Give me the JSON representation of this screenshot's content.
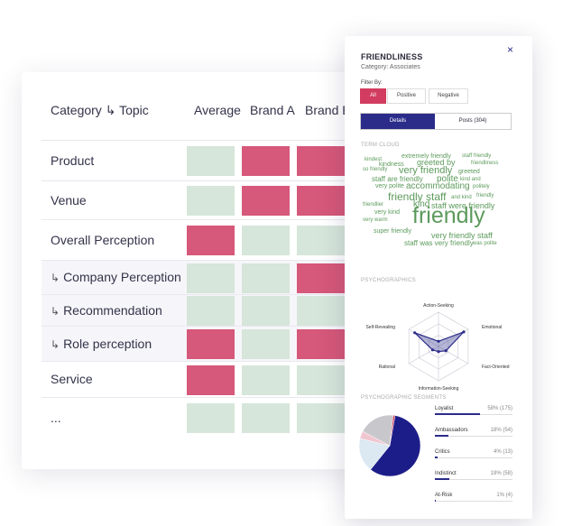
{
  "table": {
    "header_category": "Category",
    "header_arrow": "↳",
    "header_topic": "Topic",
    "columns": [
      "Average",
      "Brand A",
      "Brand B"
    ],
    "rows": [
      {
        "label": "Product",
        "sub": false,
        "cells": [
          "green",
          "red",
          "red"
        ]
      },
      {
        "label": "Venue",
        "sub": false,
        "cells": [
          "green",
          "red",
          "red"
        ]
      },
      {
        "label": "Overall Perception",
        "sub": false,
        "cells": [
          "red",
          "green",
          "green"
        ]
      },
      {
        "label": "Company Perception",
        "sub": true,
        "cells": [
          "green",
          "green",
          "red"
        ]
      },
      {
        "label": "Recommendation",
        "sub": true,
        "cells": [
          "green",
          "green",
          "green"
        ]
      },
      {
        "label": "Role perception",
        "sub": true,
        "cells": [
          "red",
          "green",
          "red"
        ]
      },
      {
        "label": "Service",
        "sub": false,
        "cells": [
          "red",
          "green",
          "green"
        ]
      },
      {
        "label": "...",
        "sub": false,
        "cells": [
          "green",
          "green",
          "green"
        ]
      }
    ],
    "sub_arrow": "↳"
  },
  "panel": {
    "title": "FRIENDLINESS",
    "subtitle": "Category: Associates",
    "close_icon": "×",
    "filter_label": "Filter By:",
    "filters": [
      "All",
      "Positive",
      "Negative"
    ],
    "active_filter": "All",
    "tabs": [
      "Details",
      "Posts (304)"
    ],
    "active_tab": "Details",
    "term_cloud_label": "TERM CLOUD",
    "psychographics_label": "PSYCHOGRAPHICS",
    "segments_label": "PSYCHOGRAPHIC SEGMENTS",
    "radar_axes": [
      "Action-Seeking",
      "Emotional",
      "Fact-Oriented",
      "Information-Seeking",
      "Rational",
      "Self-Revealing"
    ],
    "radar_values": [
      0.15,
      0.85,
      0.25,
      0.15,
      0.2,
      0.8
    ],
    "segments": [
      {
        "name": "Loyalist",
        "value": "58% (175)",
        "pct": 58
      },
      {
        "name": "Ambassadors",
        "value": "18% (54)",
        "pct": 18
      },
      {
        "name": "Critics",
        "value": "4% (13)",
        "pct": 4
      },
      {
        "name": "Indistinct",
        "value": "19% (58)",
        "pct": 19
      },
      {
        "name": "At-Risk",
        "value": "1% (4)",
        "pct": 1
      }
    ],
    "segment_colors": [
      "#1d1d8a",
      "#dce8f2",
      "#f0c6d0",
      "#c8c8cc",
      "#d23c5e"
    ]
  },
  "term_cloud": [
    {
      "text": "extremely friendly",
      "size": 7
    },
    {
      "text": "staff friendly",
      "size": 6
    },
    {
      "text": "kindest",
      "size": 6
    },
    {
      "text": "greeted by",
      "size": 9
    },
    {
      "text": "friendliness",
      "size": 6
    },
    {
      "text": "kindness",
      "size": 7
    },
    {
      "text": "so friendly",
      "size": 6
    },
    {
      "text": "very friendly",
      "size": 11
    },
    {
      "text": "greeted",
      "size": 7
    },
    {
      "text": "staff are friendly",
      "size": 8
    },
    {
      "text": "polite",
      "size": 10
    },
    {
      "text": "kind and",
      "size": 6
    },
    {
      "text": "very polite",
      "size": 7
    },
    {
      "text": "accommodating",
      "size": 10
    },
    {
      "text": "politely",
      "size": 6
    },
    {
      "text": "friendly staff",
      "size": 12
    },
    {
      "text": "and kind",
      "size": 6
    },
    {
      "text": "friendly",
      "size": 6
    },
    {
      "text": "friendlier",
      "size": 6
    },
    {
      "text": "kind",
      "size": 10
    },
    {
      "text": "staff were friendly",
      "size": 9
    },
    {
      "text": "very kind",
      "size": 7
    },
    {
      "text": "very warm",
      "size": 6
    },
    {
      "text": "friendly",
      "size": 25
    },
    {
      "text": "super friendly",
      "size": 7
    },
    {
      "text": "very friendly staff",
      "size": 9
    },
    {
      "text": "staff was very friendly",
      "size": 8
    },
    {
      "text": "was polite",
      "size": 6
    }
  ],
  "colors": {
    "red": "#d6587a",
    "green": "#d6e6da",
    "accent": "#2b2b8a",
    "active": "#d23c5e"
  }
}
